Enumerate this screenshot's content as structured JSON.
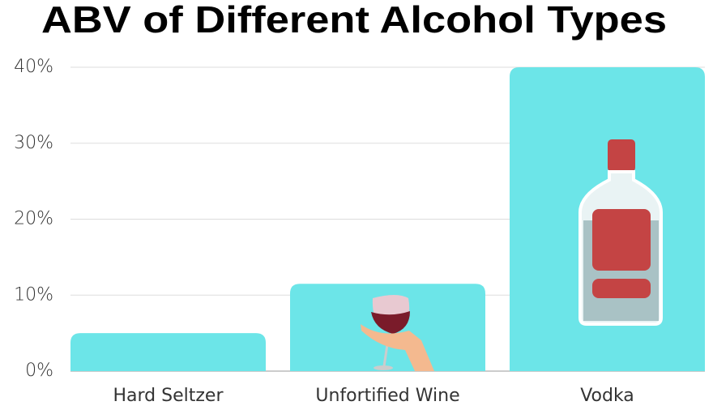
{
  "chart_data": {
    "type": "bar",
    "title": "ABV of Different Alcohol Types",
    "categories": [
      "Hard Seltzer",
      "Unfortified Wine",
      "Vodka"
    ],
    "values": [
      5,
      11.5,
      40
    ],
    "color": "#6ce5e8",
    "ylim": [
      0,
      40
    ],
    "yticks": [
      {
        "value": 0,
        "label": "0%"
      },
      {
        "value": 10,
        "label": "10%"
      },
      {
        "value": 20,
        "label": "20%"
      },
      {
        "value": 30,
        "label": "30%"
      },
      {
        "value": 40,
        "label": "40%"
      }
    ],
    "grid": true
  }
}
